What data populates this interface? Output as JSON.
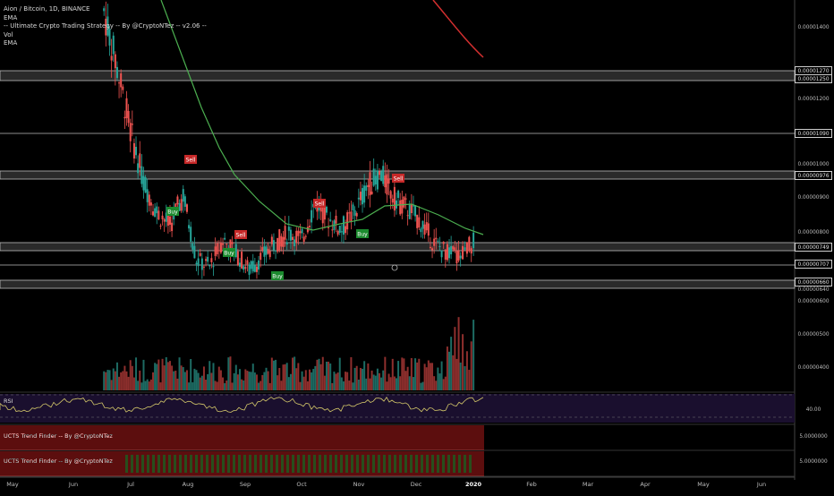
{
  "legend": {
    "line1": "Aion / Bitcoin, 1D, BINANCE",
    "line2": "EMA",
    "line3": "-- Ultimate Crypto Trading Strategy -- By @CryptoNTez -- v2.06 --",
    "line4": "Vol",
    "line5": "EMA"
  },
  "rsi": {
    "title": "RSI",
    "value": "40.00"
  },
  "trend_finders": [
    {
      "title": "UCTS Trend Finder -- By @CryptoNTez",
      "value": "5.0000000"
    },
    {
      "title": "UCTS Trend Finder -- By @CryptoNTez",
      "value": "5.0000000"
    }
  ],
  "price_tags": [
    "0.00001270",
    "0.00001250",
    "0.00001090",
    "0.00000976",
    "0.00000749",
    "0.00000707",
    "0.00000660"
  ],
  "axis_labels": [
    "0.00001400",
    "0.00001200",
    "0.00001000",
    "0.00000900",
    "0.00000800",
    "0.00000640",
    "0.00000600",
    "0.00000500",
    "0.00000400"
  ],
  "signals": [
    {
      "label": "Sell",
      "type": "sell"
    },
    {
      "label": "Buy",
      "type": "buy"
    },
    {
      "label": "Sell",
      "type": "sell"
    },
    {
      "label": "Buy",
      "type": "buy"
    },
    {
      "label": "Buy",
      "type": "buy"
    },
    {
      "label": "Sell",
      "type": "sell"
    },
    {
      "label": "Buy",
      "type": "buy"
    },
    {
      "label": "Sell",
      "type": "sell"
    }
  ],
  "months": [
    "May",
    "Jun",
    "Jul",
    "Aug",
    "Sep",
    "Oct",
    "Nov",
    "Dec",
    "2020",
    "Feb",
    "Mar",
    "Apr",
    "May",
    "Jun"
  ],
  "colors": {
    "up": "#26a69a",
    "down": "#ef5350",
    "ema_short": "#4caf50",
    "ema_long": "#d32f2f",
    "rsi_line": "#d4c86a",
    "rsi_bg": "#1a0f2e",
    "trend_red": "#b71c1c",
    "trend_green": "#1b5e20"
  },
  "chart_data": {
    "type": "candlestick",
    "title": "Aion / Bitcoin, 1D, BINANCE",
    "series_points": [
      {
        "date": "2019-06-18",
        "close": 1.45e-05
      },
      {
        "date": "2019-06-25",
        "close": 1.28e-05
      },
      {
        "date": "2019-07-02",
        "close": 1.1e-05
      },
      {
        "date": "2019-07-09",
        "close": 9.5e-06
      },
      {
        "date": "2019-07-16",
        "close": 8.6e-06
      },
      {
        "date": "2019-07-23",
        "close": 8.2e-06
      },
      {
        "date": "2019-07-30",
        "close": 9.1e-06
      },
      {
        "date": "2019-08-06",
        "close": 7.2e-06
      },
      {
        "date": "2019-08-13",
        "close": 7e-06
      },
      {
        "date": "2019-08-20",
        "close": 7.8e-06
      },
      {
        "date": "2019-08-27",
        "close": 7.4e-06
      },
      {
        "date": "2019-09-03",
        "close": 6.9e-06
      },
      {
        "date": "2019-09-10",
        "close": 7.3e-06
      },
      {
        "date": "2019-09-17",
        "close": 7.7e-06
      },
      {
        "date": "2019-09-24",
        "close": 8e-06
      },
      {
        "date": "2019-10-01",
        "close": 7.8e-06
      },
      {
        "date": "2019-10-08",
        "close": 8.9e-06
      },
      {
        "date": "2019-10-15",
        "close": 8.4e-06
      },
      {
        "date": "2019-10-22",
        "close": 8.1e-06
      },
      {
        "date": "2019-10-29",
        "close": 8.6e-06
      },
      {
        "date": "2019-11-05",
        "close": 9.4e-06
      },
      {
        "date": "2019-11-12",
        "close": 9.7e-06
      },
      {
        "date": "2019-11-19",
        "close": 9e-06
      },
      {
        "date": "2019-11-26",
        "close": 8.7e-06
      },
      {
        "date": "2019-12-03",
        "close": 8.3e-06
      },
      {
        "date": "2019-12-10",
        "close": 7.7e-06
      },
      {
        "date": "2019-12-17",
        "close": 7.4e-06
      },
      {
        "date": "2019-12-24",
        "close": 7.3e-06
      },
      {
        "date": "2020-01-01",
        "close": 7.8e-06
      }
    ],
    "ylabel": "",
    "xlabel": ""
  }
}
